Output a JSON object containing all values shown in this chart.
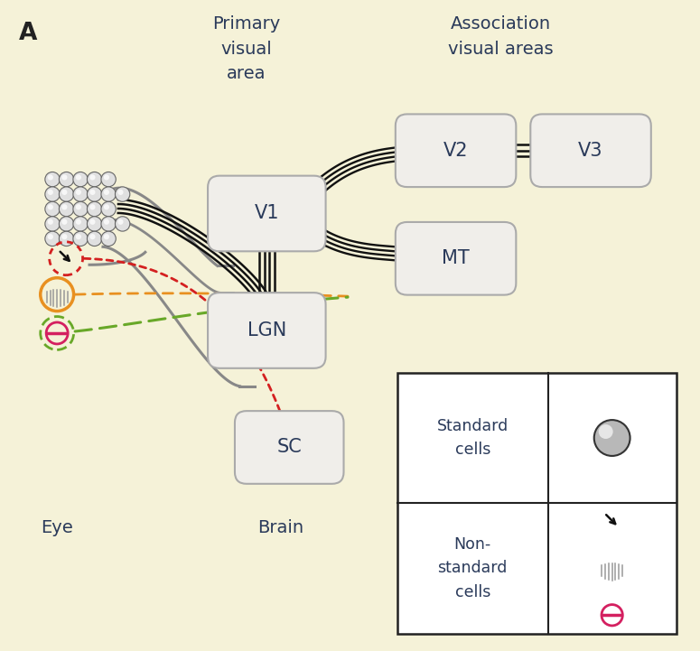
{
  "bg_color": "#f5f2d8",
  "box_ec": "#aaaaaa",
  "box_fc": "#f0eeea",
  "title_A": "A",
  "label_primary": "Primary\nvisual\narea",
  "label_association": "Association\nvisual areas",
  "label_V1": "V1",
  "label_LGN": "LGN",
  "label_V2": "V2",
  "label_V3": "V3",
  "label_MT": "MT",
  "label_SC": "SC",
  "label_eye": "Eye",
  "label_brain": "Brain",
  "legend_standard": "Standard\ncells",
  "legend_nonstandard": "Non-\nstandard\ncells",
  "red_color": "#d42020",
  "orange_color": "#e89020",
  "green_color": "#68a828",
  "pink_color": "#d42060",
  "dark_text": "#2a2a2a",
  "dark_blue_text": "#2a3a5a",
  "bundle_color": "#111111",
  "gray_line": "#888888"
}
